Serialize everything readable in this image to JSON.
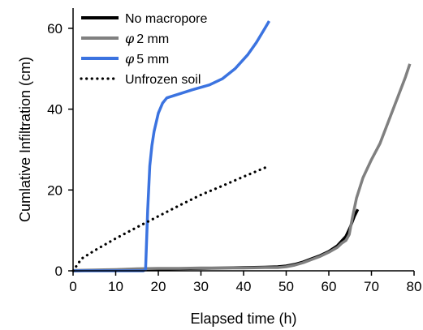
{
  "chart_data": {
    "type": "line",
    "xlabel": "Elapsed time (h)",
    "ylabel": "Cumlative Infiltration (cm)",
    "xlim": [
      0,
      80
    ],
    "ylim": [
      0,
      65
    ],
    "xticks": [
      "0",
      "10",
      "20",
      "30",
      "40",
      "50",
      "60",
      "70",
      "80"
    ],
    "yticks": [
      "0",
      "20",
      "40",
      "60"
    ],
    "grid": false,
    "legend_position": "top-left",
    "series": [
      {
        "name": "No macropore",
        "color": "#000000",
        "style": "solid",
        "points": [
          [
            0,
            0
          ],
          [
            5,
            0.1
          ],
          [
            10,
            0.2
          ],
          [
            15,
            0.3
          ],
          [
            20,
            0.4
          ],
          [
            25,
            0.5
          ],
          [
            30,
            0.6
          ],
          [
            35,
            0.7
          ],
          [
            40,
            0.8
          ],
          [
            45,
            0.9
          ],
          [
            48,
            1.0
          ],
          [
            50,
            1.2
          ],
          [
            52,
            1.6
          ],
          [
            54,
            2.2
          ],
          [
            56,
            3.0
          ],
          [
            58,
            3.8
          ],
          [
            60,
            4.8
          ],
          [
            62,
            6.2
          ],
          [
            64,
            8.5
          ],
          [
            65,
            10.8
          ],
          [
            66,
            13.5
          ],
          [
            66.8,
            15.2
          ]
        ]
      },
      {
        "name": "2 mm",
        "symbol": "φ",
        "color": "#808080",
        "style": "solid",
        "points": [
          [
            0,
            0.1
          ],
          [
            5,
            0.2
          ],
          [
            10,
            0.3
          ],
          [
            15,
            0.5
          ],
          [
            20,
            0.6
          ],
          [
            25,
            0.6
          ],
          [
            30,
            0.7
          ],
          [
            35,
            0.7
          ],
          [
            40,
            0.7
          ],
          [
            45,
            0.8
          ],
          [
            48,
            0.8
          ],
          [
            50,
            1.0
          ],
          [
            52,
            1.4
          ],
          [
            54,
            2.0
          ],
          [
            56,
            2.8
          ],
          [
            58,
            3.6
          ],
          [
            60,
            4.6
          ],
          [
            62,
            5.8
          ],
          [
            63,
            6.8
          ],
          [
            64,
            7.5
          ],
          [
            64.8,
            9.0
          ],
          [
            65.5,
            13.0
          ],
          [
            66.5,
            18.0
          ],
          [
            68,
            23.0
          ],
          [
            70,
            27.5
          ],
          [
            72,
            31.5
          ],
          [
            74,
            37.0
          ],
          [
            76,
            42.5
          ],
          [
            78,
            48.0
          ],
          [
            79,
            51.2
          ]
        ]
      },
      {
        "name": "5 mm",
        "symbol": "φ",
        "color": "#3b73e0",
        "style": "solid",
        "points": [
          [
            0,
            0
          ],
          [
            5,
            0
          ],
          [
            10,
            0
          ],
          [
            15,
            0
          ],
          [
            16.5,
            0
          ],
          [
            17,
            0.3
          ],
          [
            17.5,
            15.0
          ],
          [
            18,
            26.0
          ],
          [
            18.5,
            31.0
          ],
          [
            19,
            34.5
          ],
          [
            20,
            39.0
          ],
          [
            21,
            41.5
          ],
          [
            22,
            42.8
          ],
          [
            25,
            43.8
          ],
          [
            28,
            44.8
          ],
          [
            32,
            46.0
          ],
          [
            35,
            47.5
          ],
          [
            38,
            50.0
          ],
          [
            41,
            53.5
          ],
          [
            43,
            56.5
          ],
          [
            45,
            60.0
          ],
          [
            46,
            61.8
          ]
        ]
      },
      {
        "name": "Unfrozen soil",
        "color": "#000000",
        "style": "dotted",
        "points": [
          [
            0,
            0
          ],
          [
            2,
            3.0
          ],
          [
            5,
            5.0
          ],
          [
            10,
            8.0
          ],
          [
            15,
            10.8
          ],
          [
            20,
            13.5
          ],
          [
            25,
            16.2
          ],
          [
            30,
            18.8
          ],
          [
            35,
            21.0
          ],
          [
            40,
            23.3
          ],
          [
            45,
            25.5
          ]
        ]
      }
    ]
  }
}
